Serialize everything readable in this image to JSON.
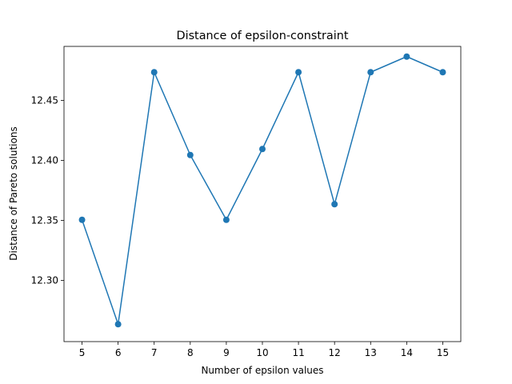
{
  "chart_data": {
    "type": "line",
    "title": "Distance of epsilon-constraint",
    "xlabel": "Number of epsilon values",
    "ylabel": "Distance of Pareto solutions",
    "xlim": [
      4.5,
      15.5
    ],
    "ylim": [
      12.249,
      12.495
    ],
    "x_ticks": [
      "5",
      "6",
      "7",
      "8",
      "9",
      "10",
      "11",
      "12",
      "13",
      "14",
      "15"
    ],
    "y_ticks": [
      "12.30",
      "12.35",
      "12.40",
      "12.45"
    ],
    "grid": false,
    "series": [
      {
        "color": "#1f77b4",
        "marker": "circle",
        "x": [
          5,
          6,
          7,
          8,
          9,
          10,
          11,
          12,
          13,
          14,
          15
        ],
        "y": [
          12.3505,
          12.2635,
          12.4735,
          12.4045,
          12.3505,
          12.4095,
          12.4735,
          12.3635,
          12.4735,
          12.4865,
          12.4735
        ]
      }
    ]
  }
}
